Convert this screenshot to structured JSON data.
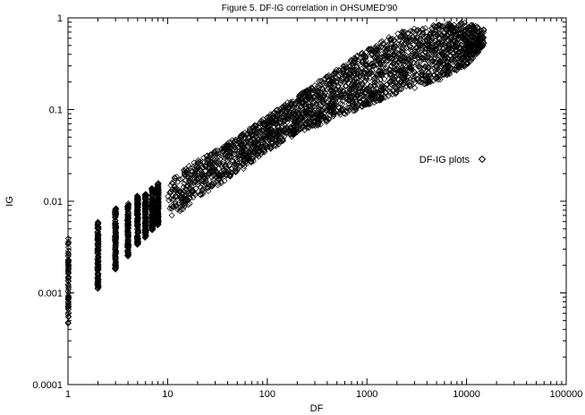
{
  "chart_data": {
    "type": "scatter",
    "title": "Figure 5. DF-IG correlation in OHSUMED'90",
    "xlabel": "DF",
    "ylabel": "IG",
    "x_scale": "log",
    "y_scale": "log",
    "xlim": [
      1,
      100000
    ],
    "ylim": [
      0.0001,
      1
    ],
    "x_ticks": [
      "1",
      "10",
      "100",
      "1000",
      "10000",
      "100000"
    ],
    "y_ticks": [
      "0.0001",
      "0.001",
      "0.01",
      "0.1",
      "1"
    ],
    "grid": false,
    "legend": {
      "position": "right-middle",
      "marker": "diamond"
    },
    "series": [
      {
        "name": "DF-IG plots",
        "marker": "diamond",
        "color": "#000000",
        "bands": [
          {
            "x": 1,
            "y_min": 0.00045,
            "y_max": 0.0042
          },
          {
            "x": 2,
            "y_min": 0.0011,
            "y_max": 0.006
          },
          {
            "x": 3,
            "y_min": 0.0018,
            "y_max": 0.0085
          },
          {
            "x": 4,
            "y_min": 0.0025,
            "y_max": 0.0095
          },
          {
            "x": 5,
            "y_min": 0.0033,
            "y_max": 0.0115
          },
          {
            "x": 6,
            "y_min": 0.004,
            "y_max": 0.012
          },
          {
            "x": 7,
            "y_min": 0.0048,
            "y_max": 0.014
          },
          {
            "x": 8,
            "y_min": 0.0055,
            "y_max": 0.016
          }
        ],
        "trend": [
          {
            "x": 10,
            "y_min": 0.006,
            "y_max": 0.017
          },
          {
            "x": 20,
            "y_min": 0.011,
            "y_max": 0.028
          },
          {
            "x": 50,
            "y_min": 0.02,
            "y_max": 0.05
          },
          {
            "x": 100,
            "y_min": 0.035,
            "y_max": 0.085
          },
          {
            "x": 200,
            "y_min": 0.055,
            "y_max": 0.14
          },
          {
            "x": 500,
            "y_min": 0.08,
            "y_max": 0.28
          },
          {
            "x": 1000,
            "y_min": 0.11,
            "y_max": 0.45
          },
          {
            "x": 2000,
            "y_min": 0.15,
            "y_max": 0.7
          },
          {
            "x": 5000,
            "y_min": 0.2,
            "y_max": 0.85
          },
          {
            "x": 10000,
            "y_min": 0.3,
            "y_max": 0.9
          },
          {
            "x": 15000,
            "y_min": 0.5,
            "y_max": 0.75
          }
        ]
      }
    ]
  }
}
